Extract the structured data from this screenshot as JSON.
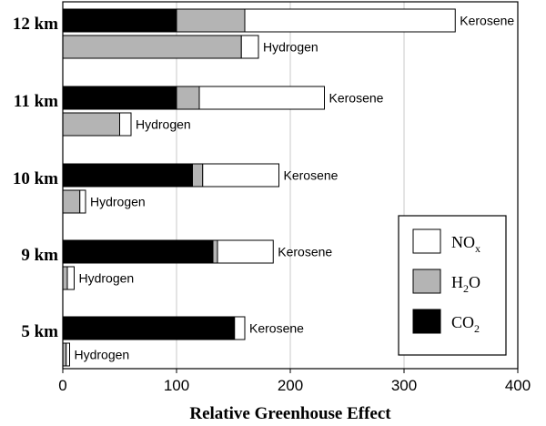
{
  "chart_data": {
    "type": "bar",
    "orientation": "horizontal",
    "stacked": true,
    "xlabel": "Relative Greenhouse Effect",
    "xlim": [
      0,
      400
    ],
    "xticks": [
      0,
      100,
      200,
      300,
      400
    ],
    "grid": true,
    "legend_position": "bottom-right",
    "series": [
      {
        "name": "CO",
        "subscript": "2",
        "color": "#000000"
      },
      {
        "name": "H",
        "subscript": "2",
        "name_tail": "O",
        "color": "#b4b4b4"
      },
      {
        "name": "NO",
        "subscript": "x",
        "color": "#ffffff"
      }
    ],
    "groups": [
      {
        "altitude": "12 km",
        "bars": [
          {
            "label": "Kerosene",
            "CO2": 100,
            "H2O": 60,
            "NOx": 185
          },
          {
            "label": "Hydrogen",
            "CO2": 0,
            "H2O": 157,
            "NOx": 15
          }
        ]
      },
      {
        "altitude": "11 km",
        "bars": [
          {
            "label": "Kerosene",
            "CO2": 100,
            "H2O": 20,
            "NOx": 110
          },
          {
            "label": "Hydrogen",
            "CO2": 0,
            "H2O": 50,
            "NOx": 10
          }
        ]
      },
      {
        "altitude": "10 km",
        "bars": [
          {
            "label": "Kerosene",
            "CO2": 114,
            "H2O": 9,
            "NOx": 67
          },
          {
            "label": "Hydrogen",
            "CO2": 0,
            "H2O": 15,
            "NOx": 5
          }
        ]
      },
      {
        "altitude": "9 km",
        "bars": [
          {
            "label": "Kerosene",
            "CO2": 132,
            "H2O": 4,
            "NOx": 49
          },
          {
            "label": "Hydrogen",
            "CO2": 0,
            "H2O": 4,
            "NOx": 6
          }
        ]
      },
      {
        "altitude": "5 km",
        "bars": [
          {
            "label": "Kerosene",
            "CO2": 151,
            "H2O": 0,
            "NOx": 9
          },
          {
            "label": "Hydrogen",
            "CO2": 0,
            "H2O": 3,
            "NOx": 3
          }
        ]
      }
    ]
  }
}
